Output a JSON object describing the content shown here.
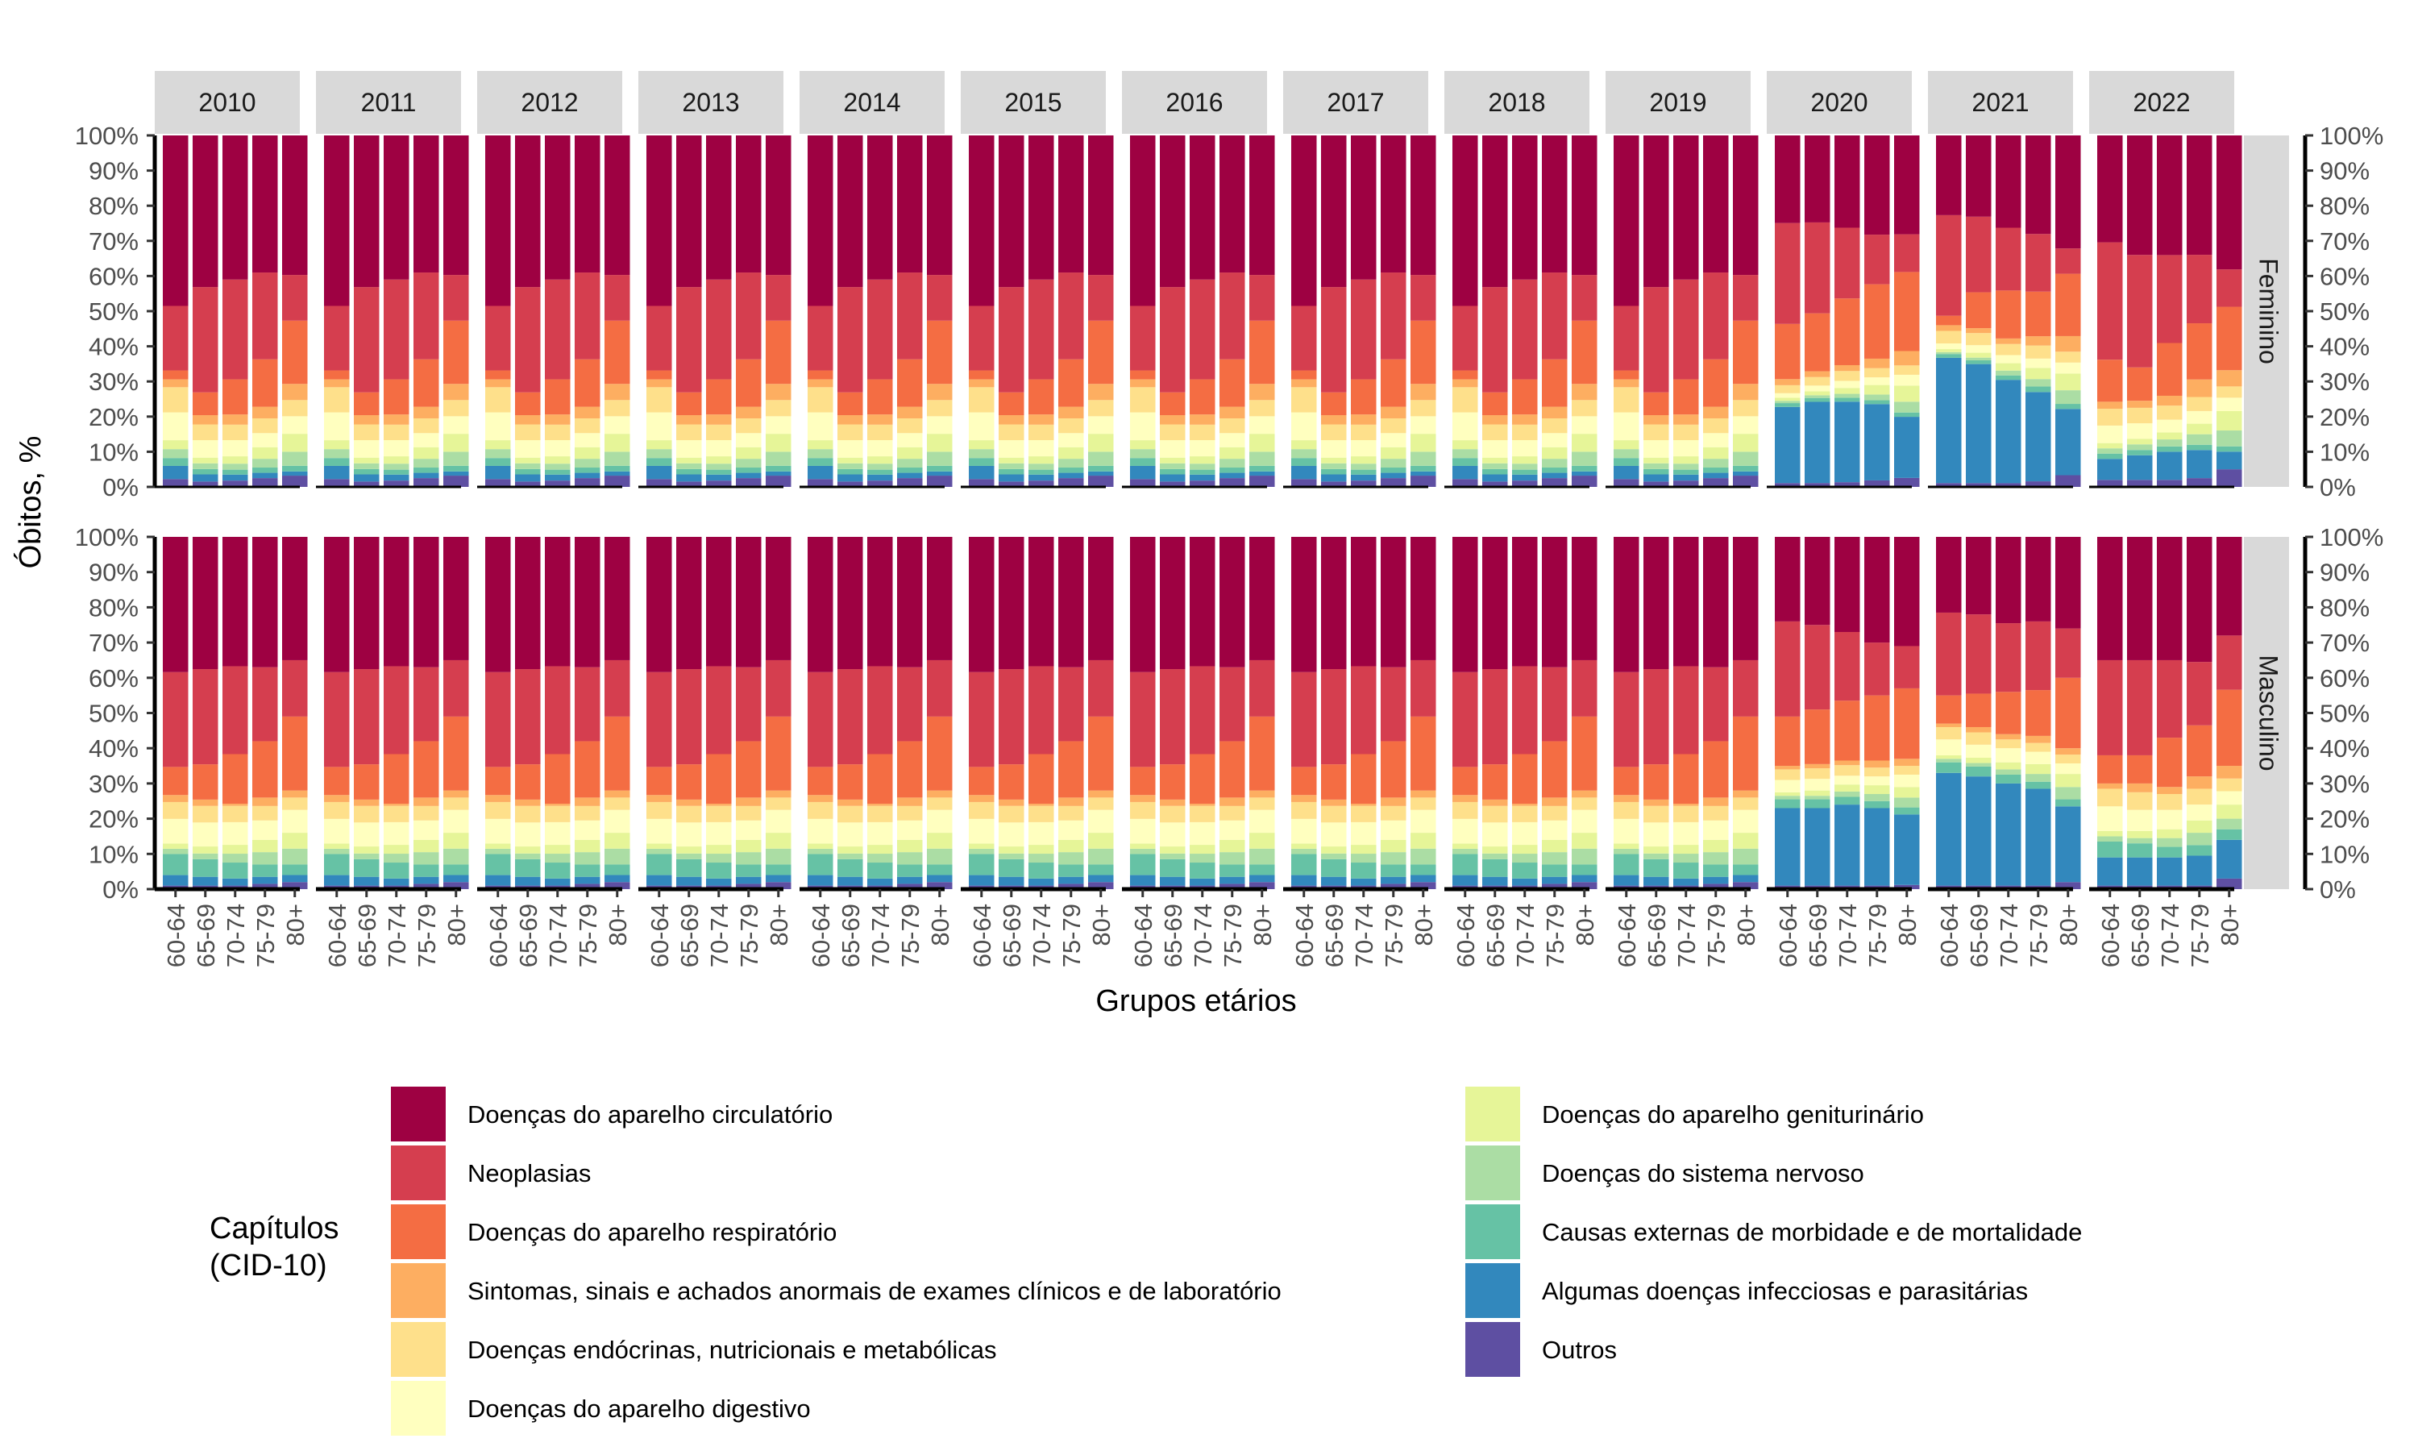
{
  "chart_data": {
    "type": "bar",
    "stacked": true,
    "normalized": true,
    "facet_columns": [
      "2010",
      "2011",
      "2012",
      "2013",
      "2014",
      "2015",
      "2016",
      "2017",
      "2018",
      "2019",
      "2020",
      "2021",
      "2022"
    ],
    "facet_rows": [
      "Feminino",
      "Masculino"
    ],
    "categories": [
      "60-64",
      "65-69",
      "70-74",
      "75-79",
      "80+"
    ],
    "xlabel": "Grupos etários",
    "ylabel": "Óbitos, %",
    "yticks": [
      "0%",
      "10%",
      "20%",
      "30%",
      "40%",
      "50%",
      "60%",
      "70%",
      "80%",
      "90%",
      "100%"
    ],
    "ylim": [
      0,
      100
    ],
    "legend_title": [
      "Capítulos",
      "(CID-10)"
    ],
    "legend_position": "bottom",
    "series": [
      {
        "name": "Outros",
        "color": "#5E4FA2"
      },
      {
        "name": "Algumas doenças infecciosas e parasitárias",
        "color": "#3288BD"
      },
      {
        "name": "Causas externas de morbidade e de mortalidade",
        "color": "#66C2A5"
      },
      {
        "name": "Doenças do sistema nervoso",
        "color": "#ABDDA4"
      },
      {
        "name": "Doenças do aparelho geniturinário",
        "color": "#E6F598"
      },
      {
        "name": "Doenças do aparelho digestivo",
        "color": "#FFFFBF"
      },
      {
        "name": "Doenças endócrinas, nutricionais e metabólicas",
        "color": "#FEE08B"
      },
      {
        "name": "Sintomas, sinais e achados anormais de exames clínicos e de laboratório",
        "color": "#FDAE61"
      },
      {
        "name": "Doenças do aparelho respiratório",
        "color": "#F46D43"
      },
      {
        "name": "Neoplasias",
        "color": "#D53E4F"
      },
      {
        "name": "Doenças do aparelho circulatório",
        "color": "#9E0142"
      }
    ],
    "legend_order": [
      10,
      9,
      8,
      7,
      6,
      5,
      4,
      3,
      2,
      1,
      0
    ],
    "values_note_series_order": "bottom-to-top, same order as series",
    "data": {
      "Feminino": {
        "default": [
          [
            1.5,
            2.5,
            1.5,
            1.7,
            1.7,
            5.3,
            4.8,
            1.5,
            1.7,
            12.3,
            32.5
          ],
          [
            1.5,
            2.0,
            1.5,
            1.6,
            1.6,
            4.9,
            4.4,
            2.6,
            6.4,
            29.5,
            42.5
          ],
          [
            1.8,
            1.7,
            1.4,
            1.7,
            2.1,
            4.6,
            4.4,
            2.9,
            10.0,
            28.4,
            41.0
          ],
          [
            2.5,
            1.5,
            1.5,
            2.5,
            3.3,
            4.0,
            4.2,
            3.3,
            13.5,
            24.7,
            39.0
          ],
          [
            3.2,
            1.2,
            1.6,
            4.0,
            5.1,
            5.0,
            4.6,
            4.6,
            18.0,
            13.0,
            39.7
          ]
        ],
        "2020": [
          [
            1.0,
            20.0,
            1.0,
            0.6,
            0.8,
            1.2,
            2.1,
            1.6,
            14.5,
            26.5,
            23.0
          ],
          [
            1.0,
            21.0,
            1.0,
            0.7,
            1.0,
            1.5,
            2.2,
            1.5,
            15.0,
            23.5,
            22.5
          ],
          [
            1.2,
            20.5,
            1.0,
            1.0,
            1.5,
            1.8,
            2.5,
            1.5,
            17.0,
            18.0,
            23.5
          ],
          [
            1.7,
            20.0,
            1.0,
            1.5,
            2.5,
            2.0,
            2.4,
            2.5,
            19.5,
            13.0,
            26.0
          ],
          [
            2.5,
            17.0,
            1.2,
            3.0,
            4.5,
            3.0,
            2.6,
            4.0,
            22.0,
            10.5,
            27.5
          ]
        ],
        "2021": [
          [
            1.0,
            33.0,
            1.0,
            0.5,
            0.8,
            1.5,
            3.3,
            1.5,
            2.5,
            26.5,
            21.0
          ],
          [
            1.0,
            31.5,
            1.0,
            0.7,
            1.3,
            2.0,
            3.2,
            1.3,
            9.5,
            20.0,
            21.5
          ],
          [
            1.0,
            28.0,
            1.2,
            1.3,
            2.0,
            2.2,
            3.0,
            1.5,
            13.0,
            17.0,
            25.0
          ],
          [
            1.5,
            24.0,
            1.5,
            2.0,
            3.0,
            2.5,
            3.5,
            2.5,
            12.0,
            15.5,
            26.5
          ],
          [
            3.0,
            17.0,
            1.3,
            3.5,
            4.3,
            2.8,
            2.8,
            4.0,
            16.0,
            6.5,
            29.0
          ]
        ],
        "2022": [
          [
            2.0,
            6.0,
            1.5,
            1.5,
            1.5,
            5.0,
            4.8,
            2.0,
            12.0,
            33.5,
            30.5
          ],
          [
            2.0,
            7.0,
            1.5,
            1.6,
            1.6,
            4.4,
            4.4,
            2.0,
            9.5,
            32.0,
            34.0
          ],
          [
            2.0,
            8.0,
            1.5,
            2.0,
            2.0,
            3.6,
            4.0,
            2.8,
            15.0,
            25.0,
            34.0
          ],
          [
            2.5,
            8.0,
            1.5,
            3.0,
            3.0,
            3.6,
            4.0,
            5.0,
            16.0,
            19.5,
            34.0
          ],
          [
            5.0,
            5.0,
            1.5,
            4.5,
            5.5,
            3.8,
            3.2,
            4.6,
            18.0,
            10.6,
            38.0
          ]
        ]
      },
      "Masculino": {
        "default": [
          [
            1.0,
            3.0,
            6.0,
            1.5,
            1.5,
            7.0,
            4.8,
            2.0,
            8.0,
            27.0,
            38.5
          ],
          [
            1.0,
            2.5,
            5.0,
            1.6,
            2.0,
            6.8,
            4.7,
            1.8,
            10.0,
            27.0,
            37.5
          ],
          [
            1.0,
            2.0,
            4.5,
            2.5,
            2.5,
            6.4,
            4.6,
            0.6,
            14.0,
            24.8,
            36.5
          ],
          [
            1.5,
            2.0,
            3.5,
            3.5,
            3.5,
            5.5,
            4.1,
            2.4,
            16.0,
            21.0,
            37.0
          ],
          [
            2.0,
            2.0,
            3.0,
            4.5,
            4.5,
            6.5,
            3.5,
            2.0,
            21.0,
            16.0,
            35.0
          ]
        ],
        "2020": [
          [
            1.0,
            22.0,
            2.5,
            1.0,
            1.0,
            3.5,
            3.0,
            1.0,
            14.0,
            27.0,
            24.0
          ],
          [
            1.0,
            22.0,
            2.5,
            1.0,
            1.5,
            3.3,
            3.0,
            1.2,
            15.5,
            24.0,
            25.0
          ],
          [
            1.0,
            23.0,
            2.2,
            1.5,
            2.0,
            2.5,
            3.0,
            1.3,
            17.0,
            19.5,
            27.0
          ],
          [
            1.0,
            22.0,
            2.0,
            2.0,
            2.5,
            2.5,
            2.5,
            2.0,
            18.5,
            15.0,
            30.0
          ],
          [
            1.2,
            20.0,
            2.0,
            2.8,
            3.0,
            3.5,
            2.5,
            2.0,
            20.0,
            12.0,
            31.0
          ]
        ],
        "2021": [
          [
            1.0,
            32.0,
            3.0,
            1.0,
            1.0,
            4.5,
            3.5,
            1.0,
            8.0,
            23.5,
            21.5
          ],
          [
            1.0,
            31.0,
            2.8,
            1.0,
            1.5,
            3.7,
            3.5,
            1.5,
            9.5,
            22.5,
            22.0
          ],
          [
            1.0,
            29.0,
            2.5,
            1.5,
            2.0,
            4.0,
            2.5,
            1.5,
            12.0,
            19.5,
            24.5
          ],
          [
            1.0,
            27.5,
            2.0,
            2.2,
            2.8,
            3.5,
            2.5,
            2.0,
            13.0,
            19.5,
            24.0
          ],
          [
            2.0,
            21.5,
            2.0,
            3.5,
            3.7,
            3.0,
            2.5,
            1.8,
            20.0,
            14.0,
            26.0
          ]
        ],
        "2022": [
          [
            1.0,
            8.0,
            4.5,
            1.5,
            1.5,
            7.0,
            5.0,
            1.5,
            8.0,
            27.0,
            35.0
          ],
          [
            1.0,
            8.0,
            4.0,
            1.5,
            2.0,
            6.0,
            5.0,
            2.5,
            8.0,
            27.0,
            35.0
          ],
          [
            1.0,
            8.0,
            3.0,
            2.5,
            2.5,
            5.5,
            4.5,
            2.0,
            14.0,
            22.0,
            35.0
          ],
          [
            1.0,
            8.5,
            3.0,
            3.5,
            3.5,
            4.5,
            4.5,
            3.5,
            14.5,
            18.0,
            35.5
          ],
          [
            3.0,
            11.0,
            3.0,
            3.0,
            4.0,
            3.8,
            3.6,
            3.6,
            21.6,
            15.4,
            28.0
          ]
        ]
      }
    }
  }
}
